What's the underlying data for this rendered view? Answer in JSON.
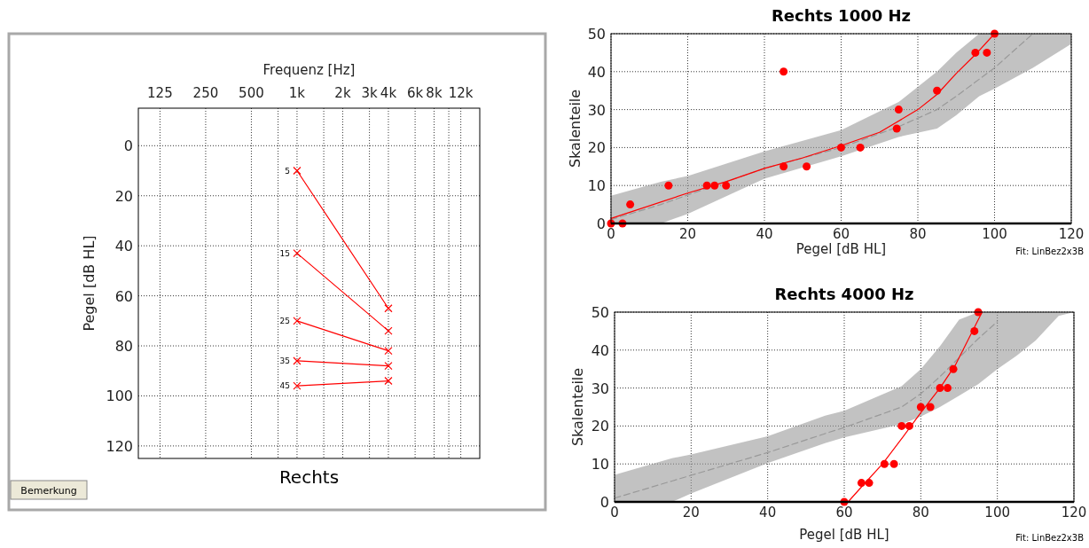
{
  "chart_data": [
    {
      "type": "line",
      "title": "Rechts",
      "xlabel": "Frequenz [Hz]",
      "ylabel": "Pegel [dB HL]",
      "log": "x",
      "grid": true,
      "xlim": [
        90,
        16000
      ],
      "xticks": [
        125,
        250,
        500,
        {
          "value": 750,
          "label": null
        },
        {
          "value": 1000,
          "label": "1k"
        },
        {
          "value": 1500,
          "label": null
        },
        {
          "value": 2000,
          "label": "2k"
        },
        {
          "value": 3000,
          "label": "3k"
        },
        {
          "value": 4000,
          "label": "4k"
        },
        {
          "value": 6000,
          "label": "6k"
        },
        {
          "value": 8000,
          "label": "8k"
        },
        {
          "value": 10000,
          "label": null
        },
        {
          "value": 12000,
          "label": "12k"
        }
      ],
      "ylim": [
        125,
        -15
      ],
      "yticks": [
        0,
        20,
        40,
        60,
        80,
        100,
        120
      ],
      "annotations": [
        "Bemerkung"
      ],
      "x": [
        1000,
        4000
      ],
      "series": [
        {
          "name": "5",
          "color": "#ff0000",
          "marker": "cross",
          "values": [
            10,
            65
          ]
        },
        {
          "name": "15",
          "color": "#ff0000",
          "marker": "cross",
          "values": [
            43,
            74
          ]
        },
        {
          "name": "25",
          "color": "#ff0000",
          "marker": "cross",
          "values": [
            70,
            82
          ]
        },
        {
          "name": "35",
          "color": "#ff0000",
          "marker": "cross",
          "values": [
            86,
            88
          ]
        },
        {
          "name": "45",
          "color": "#ff0000",
          "marker": "cross",
          "values": [
            96,
            94
          ]
        }
      ]
    },
    {
      "type": "scatter",
      "title": "Rechts 1000 Hz",
      "xlabel": "Pegel [dB HL]",
      "ylabel": "Skalenteile",
      "grid": true,
      "xlim": [
        0,
        120
      ],
      "xticks": [
        0,
        20,
        40,
        60,
        80,
        100,
        120
      ],
      "ylim": [
        0,
        50
      ],
      "yticks": [
        0,
        10,
        20,
        30,
        40,
        50
      ],
      "annotations": [
        "Fit: LinBez2x3B"
      ],
      "series": [
        {
          "type": "line",
          "color": "#999999",
          "line_style": "dashed",
          "marker": "none",
          "x": [
            0,
            13,
            20,
            40,
            60,
            75,
            85,
            90,
            96,
            100,
            110,
            120
          ],
          "values": [
            1,
            5,
            7.5,
            14.5,
            20,
            25.5,
            30,
            33.5,
            38,
            41,
            50,
            null
          ],
          "lower": [
            0,
            0,
            2.5,
            11.8,
            17.7,
            22.8,
            25,
            28.5,
            33.5,
            35.5,
            41,
            47.3
          ],
          "upper": [
            7.3,
            11,
            12.5,
            19,
            24.6,
            32,
            40,
            45,
            50,
            50,
            50,
            50
          ]
        },
        {
          "type": "line",
          "color": "#ff0000",
          "line_style": "solid",
          "marker": "none",
          "x": [
            0,
            20,
            30,
            40,
            50,
            60,
            70,
            80,
            85,
            90,
            95,
            100
          ],
          "values": [
            1.3,
            8,
            11,
            14.5,
            17.3,
            20.5,
            24,
            30,
            34,
            39.5,
            44.5,
            50
          ]
        },
        {
          "color": "#ff0000",
          "marker": "circle",
          "x": [
            0,
            3,
            5,
            15,
            25,
            27,
            30,
            45,
            51,
            60,
            65,
            74.5,
            75,
            85,
            95,
            98,
            100
          ],
          "values": [
            0,
            0,
            5,
            10,
            10,
            10,
            10,
            15,
            15,
            20,
            20,
            25,
            30,
            35,
            45,
            45,
            50
          ]
        },
        {
          "color": "#ff0000",
          "marker": "circle",
          "x": [
            45
          ],
          "values": [
            40
          ]
        }
      ]
    },
    {
      "type": "scatter",
      "title": "Rechts 4000 Hz",
      "xlabel": "Pegel [dB HL]",
      "ylabel": "Skalenteile",
      "grid": true,
      "xlim": [
        0,
        120
      ],
      "xticks": [
        0,
        20,
        40,
        60,
        80,
        100,
        120
      ],
      "ylim": [
        0,
        50
      ],
      "yticks": [
        0,
        10,
        20,
        30,
        40,
        50
      ],
      "annotations": [
        "Fit: LinBez2x3B"
      ],
      "series": [
        {
          "type": "line",
          "color": "#999999",
          "line_style": "dashed",
          "marker": "none",
          "x": [
            0,
            15,
            20,
            40,
            55,
            60,
            75,
            80,
            85,
            90,
            95,
            100,
            105,
            110,
            116,
            120
          ],
          "values": [
            1,
            5.5,
            7,
            13,
            18,
            19.6,
            25,
            28.5,
            33,
            38,
            43,
            47.5,
            null,
            null,
            null,
            null
          ],
          "lower": [
            0,
            0,
            2.2,
            10.2,
            15.5,
            17,
            20.5,
            22.5,
            25,
            28,
            31,
            35,
            38.5,
            42.5,
            49,
            50
          ],
          "upper": [
            7.1,
            11.5,
            12.5,
            17.3,
            22.7,
            24,
            30.5,
            35,
            41,
            48,
            50,
            50,
            50,
            50,
            50,
            50
          ]
        },
        {
          "type": "line",
          "color": "#ff0000",
          "line_style": "solid",
          "marker": "none",
          "x": [
            61,
            65,
            70,
            76,
            80,
            85,
            89,
            93,
            96
          ],
          "values": [
            0,
            4.5,
            10,
            18,
            23.5,
            30,
            36,
            44,
            50
          ]
        },
        {
          "color": "#ff0000",
          "marker": "circle",
          "x": [
            60,
            64.5,
            66.5,
            70.5,
            73,
            75,
            77,
            80,
            82.5,
            85,
            87,
            88.5,
            94,
            95
          ],
          "values": [
            0,
            5,
            5,
            10,
            10,
            20,
            20,
            25,
            25,
            30,
            30,
            35,
            45,
            50
          ]
        }
      ]
    }
  ]
}
